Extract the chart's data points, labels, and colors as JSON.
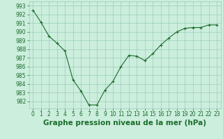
{
  "x": [
    0,
    1,
    2,
    3,
    4,
    5,
    6,
    7,
    8,
    9,
    10,
    11,
    12,
    13,
    14,
    15,
    16,
    17,
    18,
    19,
    20,
    21,
    22,
    23
  ],
  "y": [
    992.5,
    991.1,
    989.5,
    988.7,
    987.8,
    984.5,
    983.2,
    981.6,
    981.6,
    983.3,
    984.3,
    986.0,
    987.3,
    987.2,
    986.7,
    987.5,
    988.5,
    989.3,
    990.0,
    990.4,
    990.5,
    990.5,
    990.8,
    990.8
  ],
  "ylim": [
    981.2,
    993.5
  ],
  "yticks": [
    982,
    983,
    984,
    985,
    986,
    987,
    988,
    989,
    990,
    991,
    992,
    993
  ],
  "xlabel": "Graphe pression niveau de la mer (hPa)",
  "line_color": "#1a6b2a",
  "marker_color": "#1a6b2a",
  "bg_color": "#cceedd",
  "grid_color": "#99ccbb",
  "tick_label_color": "#1a6b2a",
  "xlabel_color": "#1a6b2a",
  "font_size_ticks": 5.5,
  "font_size_xlabel": 7.5
}
